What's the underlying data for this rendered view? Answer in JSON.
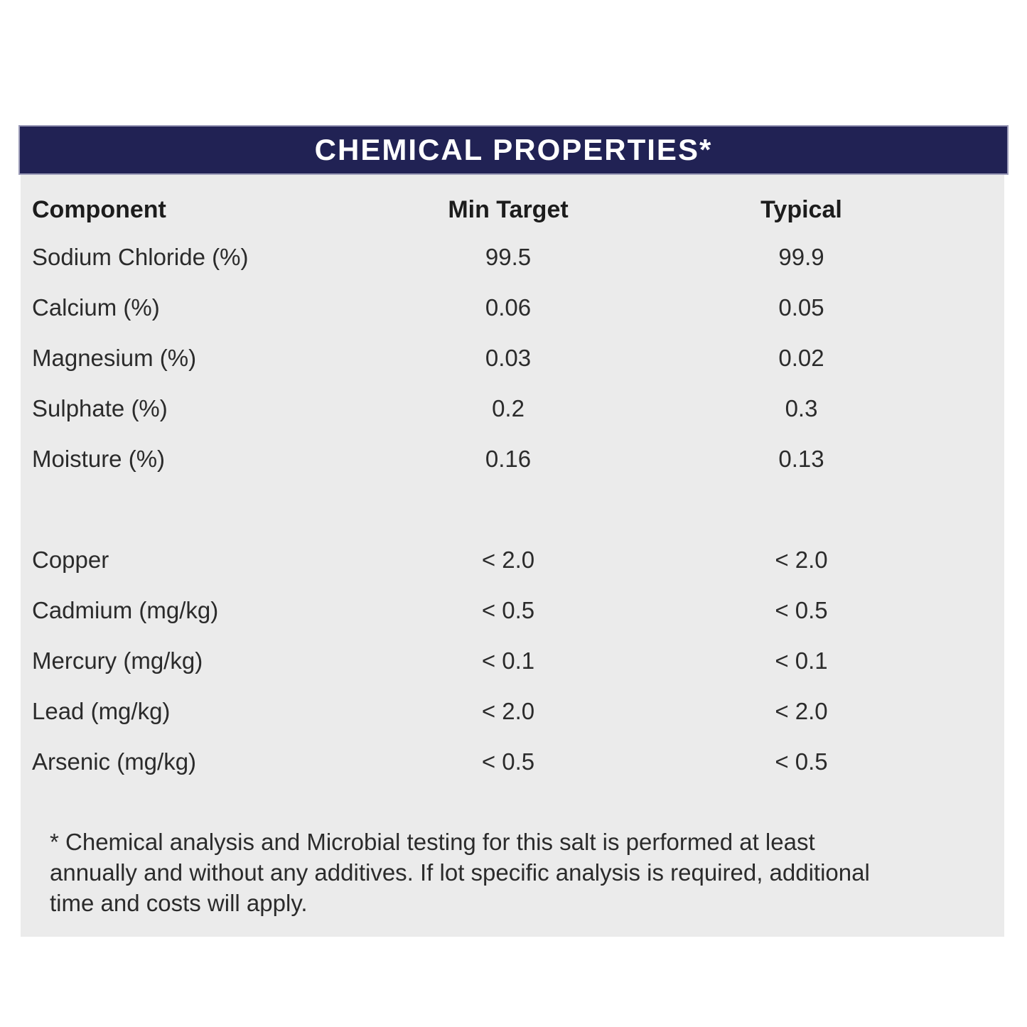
{
  "header": {
    "title": "CHEMICAL PROPERTIES*"
  },
  "table": {
    "columns": [
      "Component",
      "Min Target",
      "Typical"
    ],
    "groups": [
      {
        "rows": [
          {
            "component": "Sodium Chloride (%)",
            "min_target": "99.5",
            "typical": "99.9"
          },
          {
            "component": "Calcium (%)",
            "min_target": "0.06",
            "typical": "0.05"
          },
          {
            "component": "Magnesium (%)",
            "min_target": "0.03",
            "typical": "0.02"
          },
          {
            "component": "Sulphate (%)",
            "min_target": "0.2",
            "typical": "0.3"
          },
          {
            "component": "Moisture (%)",
            "min_target": "0.16",
            "typical": "0.13"
          }
        ]
      },
      {
        "rows": [
          {
            "component": "Copper",
            "min_target": "< 2.0",
            "typical": "< 2.0"
          },
          {
            "component": "Cadmium (mg/kg)",
            "min_target": "< 0.5",
            "typical": "< 0.5"
          },
          {
            "component": "Mercury (mg/kg)",
            "min_target": "< 0.1",
            "typical": "< 0.1"
          },
          {
            "component": "Lead (mg/kg)",
            "min_target": "< 2.0",
            "typical": "< 2.0"
          },
          {
            "component": "Arsenic (mg/kg)",
            "min_target": "< 0.5",
            "typical": "< 0.5"
          }
        ]
      }
    ]
  },
  "footnote": {
    "lines": [
      "* Chemical analysis and Microbial testing for this salt is performed at least",
      "annually and without any additives. If lot specific analysis is required, additional",
      "time and costs will apply."
    ]
  },
  "colors": {
    "title_bar_bg": "#212254",
    "title_bar_border": "#9b9bb8",
    "title_text": "#ffffff",
    "panel_bg": "#ebebeb",
    "body_text": "#2b2b2b"
  }
}
